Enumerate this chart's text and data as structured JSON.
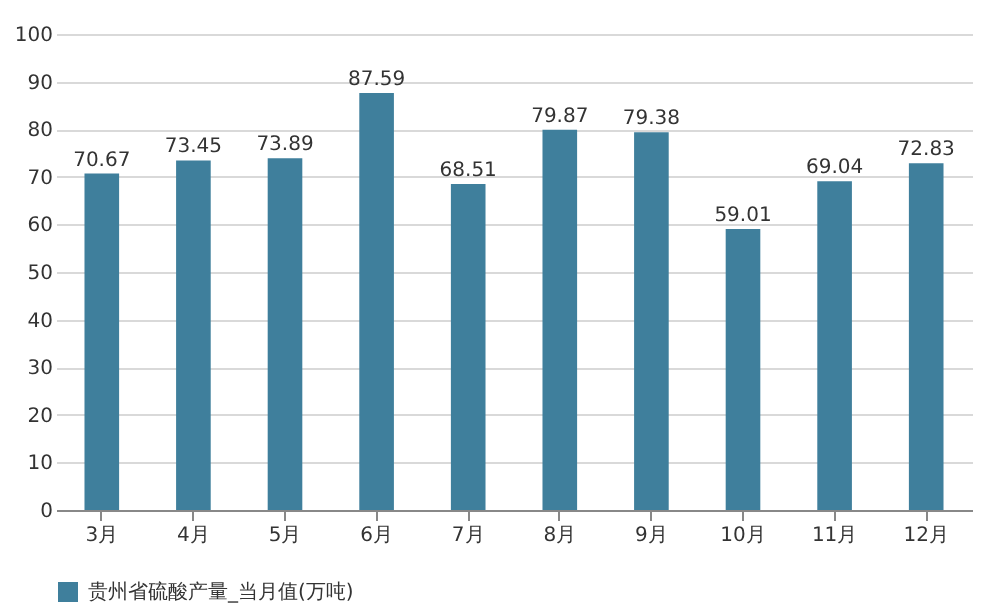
{
  "chart_data": {
    "type": "bar",
    "categories": [
      "3月",
      "4月",
      "5月",
      "6月",
      "7月",
      "8月",
      "9月",
      "10月",
      "11月",
      "12月"
    ],
    "series": [
      {
        "name": "贵州省硫酸产量_当月值(万吨)",
        "color": "#3f7f9c",
        "values": [
          70.67,
          73.45,
          73.89,
          87.59,
          68.51,
          79.87,
          79.38,
          59.01,
          69.04,
          72.83
        ]
      }
    ],
    "ylim": [
      0,
      100
    ],
    "yticks": [
      0,
      10,
      20,
      30,
      40,
      50,
      60,
      70,
      80,
      90,
      100
    ],
    "grid": "y",
    "legend": "bottom",
    "data_labels": true
  }
}
